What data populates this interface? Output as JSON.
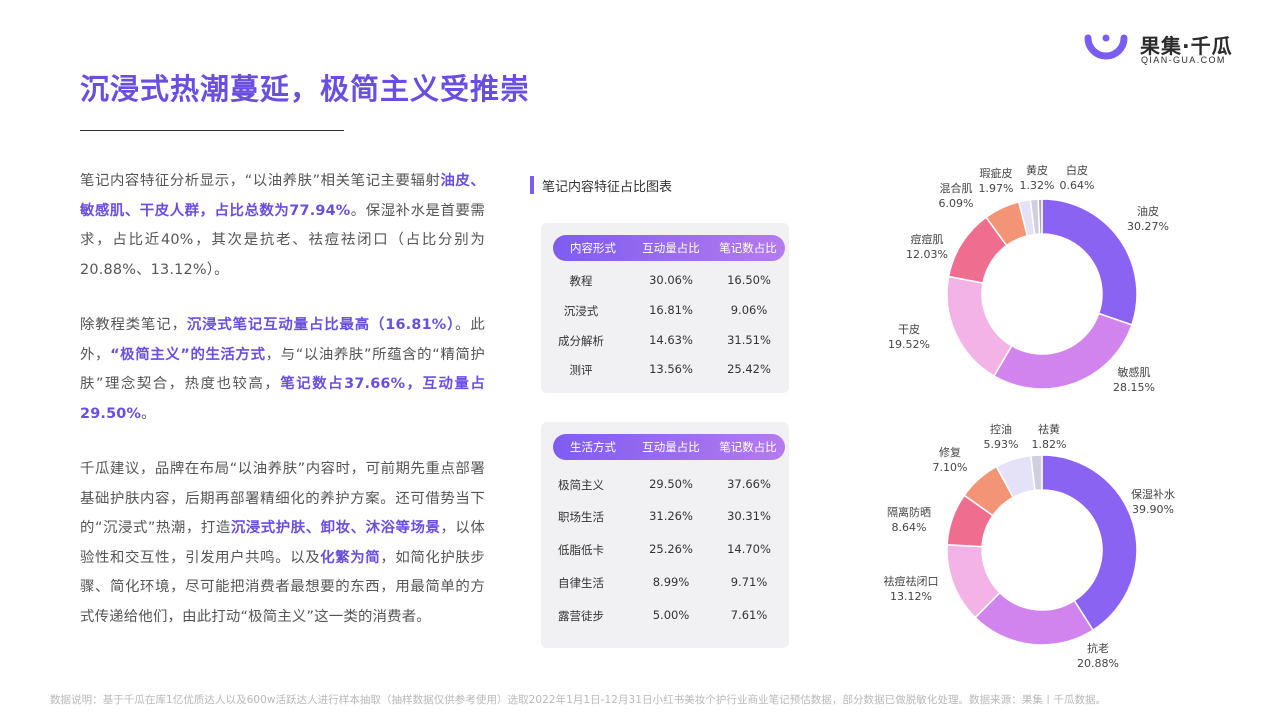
{
  "logo": {
    "brand_cn": "果集·千瓜",
    "brand_en": "QIAN-GUA.COM"
  },
  "title": "沉浸式热潮蔓延，极简主义受推崇",
  "paragraphs": {
    "p1": [
      "笔记内容特征分析显示，“以油养肤”相关笔记主要辐射",
      "油皮、敏感肌、干皮人群，占比总数为77.94%",
      "。保湿补水是首要需求，占比近40%，其次是抗老、祛痘祛闭口（占比分别为20.88%、13.12%）。"
    ],
    "p2": [
      "除教程类笔记，",
      "沉浸式笔记互动量占比最高（16.81%）",
      "。此外，",
      "“极简主义”的生活方式",
      "，与“以油养肤”所蕴含的“精简护肤”理念契合，热度也较高，",
      "笔记数占37.66%，互动量占29.50%",
      "。"
    ],
    "p3": [
      "千瓜建议，品牌在布局“以油养肤”内容时，可前期先重点部署基础护肤内容，后期再部署精细化的养护方案。还可借势当下的“沉浸式”热潮，打造",
      "沉浸式护肤、卸妆、沐浴等场景",
      "，以体验性和交互性，引发用户共鸣。以及",
      "化繁为简",
      "，如简化护肤步骤、简化环境，尽可能把消费者最想要的东西，用最简单的方式传递给他们，由此打动“极简主义”这一类的消费者。"
    ]
  },
  "chart_heading": "笔记内容特征占比图表",
  "table1": {
    "headers": [
      "内容形式",
      "互动量占比",
      "笔记数占比"
    ],
    "rows": [
      [
        "教程",
        "30.06%",
        "16.50%"
      ],
      [
        "沉浸式",
        "16.81%",
        "9.06%"
      ],
      [
        "成分解析",
        "14.63%",
        "31.51%"
      ],
      [
        "测评",
        "13.56%",
        "25.42%"
      ]
    ]
  },
  "table2": {
    "headers": [
      "生活方式",
      "互动量占比",
      "笔记数占比"
    ],
    "rows": [
      [
        "极简主义",
        "29.50%",
        "37.66%"
      ],
      [
        "职场生活",
        "31.26%",
        "30.31%"
      ],
      [
        "低脂低卡",
        "25.26%",
        "14.70%"
      ],
      [
        "自律生活",
        "8.99%",
        "9.71%"
      ],
      [
        "露营徒步",
        "5.00%",
        "7.61%"
      ]
    ]
  },
  "chart_data": [
    {
      "type": "pie",
      "variant": "donut",
      "start": "top",
      "direction": "clockwise",
      "slices": [
        {
          "label": "油皮",
          "value": 30.27,
          "display": "30.27%",
          "color": "#8b63f3"
        },
        {
          "label": "敏感肌",
          "value": 28.15,
          "display": "28.15%",
          "color": "#d284ee"
        },
        {
          "label": "干皮",
          "value": 19.52,
          "display": "19.52%",
          "color": "#f3b3e6"
        },
        {
          "label": "痘痘肌",
          "value": 12.03,
          "display": "12.03%",
          "color": "#ef6e8f"
        },
        {
          "label": "混合肌",
          "value": 6.09,
          "display": "6.09%",
          "color": "#f39477"
        },
        {
          "label": "瑕疵皮",
          "value": 1.97,
          "display": "1.97%",
          "color": "#e5e1f7"
        },
        {
          "label": "黄皮",
          "value": 1.32,
          "display": "1.32%",
          "color": "#d0cfdf"
        },
        {
          "label": "白皮",
          "value": 0.64,
          "display": "0.64%",
          "color": "#a8a6bc"
        }
      ]
    },
    {
      "type": "pie",
      "variant": "donut",
      "start": "top",
      "direction": "clockwise",
      "slices": [
        {
          "label": "保湿补水",
          "value": 39.9,
          "display": "39.90%",
          "color": "#8b63f3"
        },
        {
          "label": "抗老",
          "value": 20.88,
          "display": "20.88%",
          "color": "#d284ee"
        },
        {
          "label": "祛痘祛闭口",
          "value": 13.12,
          "display": "13.12%",
          "color": "#f3b3e6"
        },
        {
          "label": "隔离防晒",
          "value": 8.64,
          "display": "8.64%",
          "color": "#ef6e8f"
        },
        {
          "label": "修复",
          "value": 7.1,
          "display": "7.10%",
          "color": "#f39477"
        },
        {
          "label": "控油",
          "value": 5.93,
          "display": "5.93%",
          "color": "#e5e1f7"
        },
        {
          "label": "祛黄",
          "value": 1.82,
          "display": "1.82%",
          "color": "#d0cfdf"
        }
      ]
    }
  ],
  "footnote": "数据说明：基于千瓜在库1亿优质达人以及600w活跃达人进行样本抽取（抽样数据仅供参考使用）选取2022年1月1日-12月31日小红书美妆个护行业商业笔记预估数据，部分数据已做脱敏化处理。数据来源：果集丨千瓜数据。"
}
